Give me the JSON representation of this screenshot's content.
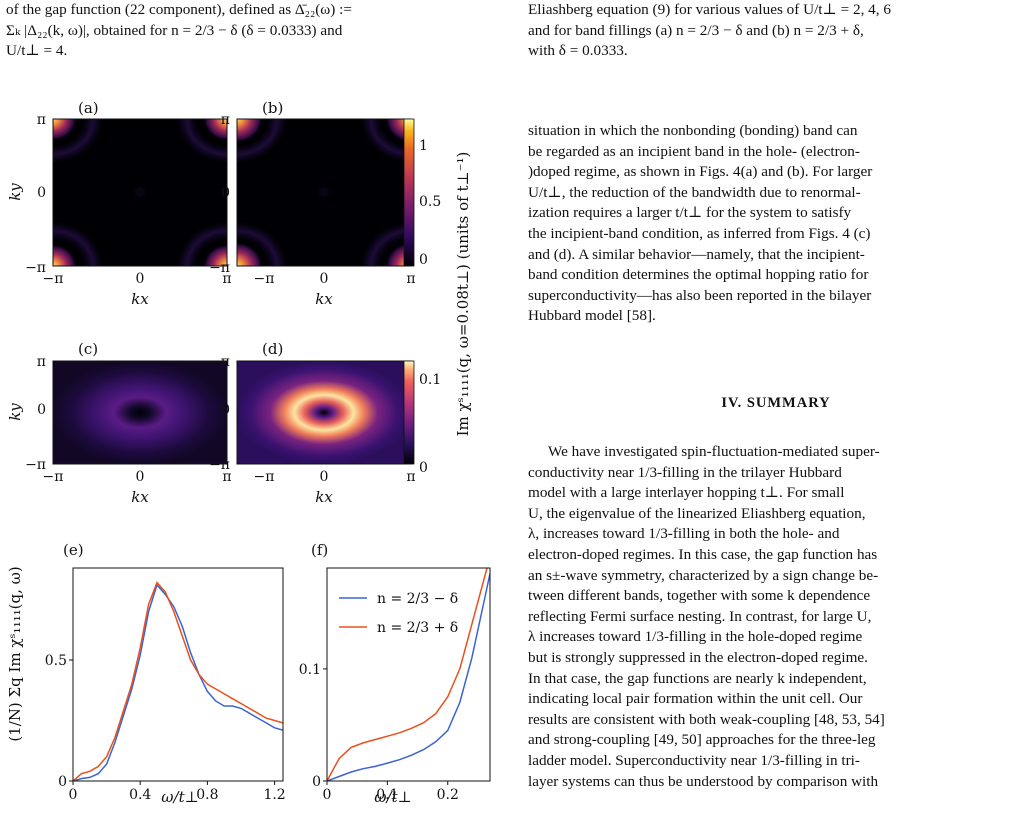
{
  "left_caption_fragment": [
    "of the gap function (22 component), defined as Δ̄₂₂(ω) :=",
    "Σₖ |Δ₂₂(k, ω)|, obtained for n = 2/3 − δ (δ = 0.0333) and",
    "U/t⊥ = 4."
  ],
  "right_caption_fragment": [
    "Eliashberg equation (9) for various values of U/t⊥ = 2, 4, 6",
    "and for band fillings (a) n = 2/3 − δ and (b) n = 2/3 + δ,",
    "with δ = 0.0333."
  ],
  "body_paragraph": [
    "situation in which the nonbonding (bonding) band can",
    "be regarded as an incipient band in the hole- (electron-",
    ")doped regime, as shown in Figs. 4(a) and (b). For larger",
    "U/t⊥, the reduction of the bandwidth due to renormal-",
    "ization requires a larger t/t⊥ for the system to satisfy",
    "the incipient-band condition, as inferred from Figs. 4 (c)",
    "and (d). A similar behavior—namely, that the incipient-",
    "band condition determines the optimal hopping ratio for",
    "superconductivity—has also been reported in the bilayer",
    "Hubbard model [58]."
  ],
  "section_heading": "IV.   SUMMARY",
  "summary_paragraph": [
    "We have investigated spin-fluctuation-mediated super-",
    "conductivity near 1/3-filling in the trilayer Hubbard",
    "model with a large interlayer hopping t⊥.  For small",
    "U, the eigenvalue of the linearized Eliashberg equation,",
    "λ, increases toward 1/3-filling in both the hole- and",
    "electron-doped regimes. In this case, the gap function has",
    "an s±-wave symmetry, characterized by a sign change be-",
    "tween different bands, together with some k dependence",
    "reflecting Fermi surface nesting. In contrast, for large U,",
    "λ increases toward 1/3-filling in the hole-doped regime",
    "but is strongly suppressed in the electron-doped regime.",
    "In that case, the gap functions are nearly k independent,",
    "indicating local pair formation within the unit cell. Our",
    "results are consistent with both weak-coupling [48, 53, 54]",
    "and strong-coupling [49, 50] approaches for the three-leg",
    "ladder model. Superconductivity near 1/3-filling in tri-",
    "layer systems can thus be understood by comparison with"
  ],
  "figure": {
    "panel_labels": [
      "(a)",
      "(b)",
      "(c)",
      "(d)",
      "(e)",
      "(f)"
    ],
    "heatmap_axis": {
      "xlabel": "kx",
      "ylabel": "ky",
      "ticks": [
        "−π",
        "0",
        "π"
      ]
    },
    "colorbar_top": {
      "ticks": [
        "0",
        "0.5",
        "1"
      ],
      "colormap": "inferno"
    },
    "colorbar_bottom": {
      "ticks": [
        "0",
        "0.1"
      ],
      "colormap": "magma"
    },
    "colorbar_label": "Im χˢ₁₁₁₁(q, ω=0.08t⊥)  (units of t⊥⁻¹)",
    "line_ylabel": "(1/N) Σq Im χˢ₁₁₁₁(q, ω)",
    "line_xlabel": "ω/t⊥",
    "legend": [
      "n = 2/3 − δ",
      "n = 2/3 + δ"
    ],
    "colors": {
      "blue": "#3b63d4",
      "orange": "#e8501c"
    }
  },
  "chart_data": [
    {
      "type": "line",
      "panel": "(e)",
      "xlabel": "ω/t⊥",
      "ylabel": "(1/N) Σq Im χˢ₁₁₁₁(q, ω)",
      "xlim": [
        0,
        1.25
      ],
      "ylim": [
        0,
        0.88
      ],
      "xticks": [
        "0",
        "0.4",
        "0.8",
        "1.2"
      ],
      "yticks": [
        "0",
        "0.5"
      ],
      "series": [
        {
          "name": "n = 2/3 − δ",
          "color": "#3b63d4",
          "x": [
            0,
            0.05,
            0.1,
            0.15,
            0.2,
            0.25,
            0.3,
            0.35,
            0.4,
            0.45,
            0.5,
            0.55,
            0.6,
            0.65,
            0.7,
            0.75,
            0.8,
            0.85,
            0.9,
            0.95,
            1.0,
            1.05,
            1.1,
            1.15,
            1.2,
            1.25
          ],
          "y": [
            0.0,
            0.01,
            0.015,
            0.03,
            0.07,
            0.16,
            0.27,
            0.38,
            0.52,
            0.7,
            0.81,
            0.77,
            0.72,
            0.64,
            0.53,
            0.44,
            0.37,
            0.33,
            0.31,
            0.31,
            0.3,
            0.28,
            0.26,
            0.24,
            0.22,
            0.21
          ]
        },
        {
          "name": "n = 2/3 + δ",
          "color": "#e8501c",
          "x": [
            0,
            0.05,
            0.1,
            0.15,
            0.2,
            0.25,
            0.3,
            0.35,
            0.4,
            0.45,
            0.5,
            0.55,
            0.6,
            0.65,
            0.7,
            0.75,
            0.8,
            0.85,
            0.9,
            0.95,
            1.0,
            1.05,
            1.1,
            1.15,
            1.2,
            1.25
          ],
          "y": [
            0.0,
            0.03,
            0.04,
            0.06,
            0.1,
            0.18,
            0.29,
            0.4,
            0.55,
            0.73,
            0.82,
            0.78,
            0.7,
            0.6,
            0.5,
            0.44,
            0.4,
            0.38,
            0.36,
            0.34,
            0.32,
            0.3,
            0.28,
            0.26,
            0.25,
            0.24
          ]
        }
      ]
    },
    {
      "type": "line",
      "panel": "(f)",
      "xlabel": "ω/t⊥",
      "xlim": [
        0,
        0.27
      ],
      "ylim": [
        0,
        0.19
      ],
      "xticks": [
        "0",
        "0.1",
        "0.2"
      ],
      "yticks": [
        "0",
        "0.1"
      ],
      "legend_location": "upper left",
      "series": [
        {
          "name": "n = 2/3 − δ",
          "color": "#3b63d4",
          "x": [
            0,
            0.02,
            0.04,
            0.06,
            0.08,
            0.1,
            0.12,
            0.14,
            0.16,
            0.18,
            0.2,
            0.22,
            0.24,
            0.26,
            0.27
          ],
          "y": [
            0.0,
            0.004,
            0.008,
            0.011,
            0.013,
            0.016,
            0.019,
            0.023,
            0.028,
            0.035,
            0.045,
            0.07,
            0.11,
            0.16,
            0.185
          ]
        },
        {
          "name": "n = 2/3 + δ",
          "color": "#e8501c",
          "x": [
            0,
            0.02,
            0.04,
            0.06,
            0.08,
            0.1,
            0.12,
            0.14,
            0.16,
            0.18,
            0.2,
            0.22,
            0.24,
            0.26,
            0.265
          ],
          "y": [
            0.0,
            0.02,
            0.03,
            0.034,
            0.037,
            0.04,
            0.043,
            0.047,
            0.052,
            0.06,
            0.075,
            0.1,
            0.14,
            0.18,
            0.19
          ]
        }
      ]
    }
  ]
}
